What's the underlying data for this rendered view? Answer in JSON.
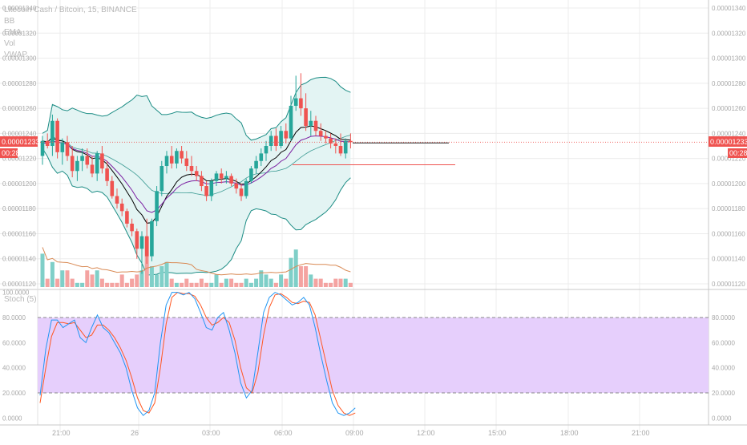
{
  "header": {
    "symbol": "Litecoin Cash / Bitcoin, 15, BINANCE",
    "indicators": [
      "BB",
      "EMA",
      "Vol",
      "VWAP"
    ]
  },
  "price_axis": {
    "labels": [
      "0.00001340",
      "0.00001320",
      "0.00001300",
      "0.00001280",
      "0.00001260",
      "0.00001240",
      "0.00001220",
      "0.00001200",
      "0.00001180",
      "0.00001160",
      "0.00001140",
      "0.00001120"
    ],
    "current_price": "0.00001233",
    "countdown": "00:28"
  },
  "stoch": {
    "title": "Stoch (5)",
    "labels": [
      "100.0000",
      "80.0000",
      "60.0000",
      "40.0000",
      "20.0000",
      "0.0000"
    ],
    "right_labels": [
      "80.0000",
      "60.0000",
      "40.0000",
      "20.0000",
      "0.0000"
    ],
    "band_color": "#e6cffc"
  },
  "time_axis": [
    "21:00",
    "26",
    "03:00",
    "06:00",
    "09:00",
    "12:00",
    "15:00",
    "18:00",
    "21:00"
  ],
  "colors": {
    "up": "#26a69a",
    "down": "#ef5350",
    "bb_fill": "#e3f4f3",
    "bb_line": "#1b8c84",
    "ema_fast": "#000000",
    "ema_slow": "#7b1fa2",
    "vwap": "#d98a55",
    "k_line": "#2196f3",
    "d_line": "#ff5722"
  },
  "chart_data": [
    {
      "type": "candlestick",
      "title": "Litecoin Cash / Bitcoin, 15, BINANCE",
      "x_ticks": [
        "21:00",
        "26",
        "03:00",
        "06:00",
        "09:00",
        "12:00",
        "15:00",
        "18:00",
        "21:00"
      ],
      "y_range": [
        1.12e-05,
        1.34e-05
      ],
      "y_ticks": [
        1.34e-05,
        1.32e-05,
        1.3e-05,
        1.28e-05,
        1.26e-05,
        1.24e-05,
        1.22e-05,
        1.2e-05,
        1.18e-05,
        1.16e-05,
        1.14e-05,
        1.12e-05
      ],
      "current_price": 1.233e-05,
      "ohlc": [
        [
          12.22,
          12.38,
          12.15,
          12.34
        ],
        [
          12.34,
          12.4,
          12.28,
          12.3
        ],
        [
          12.3,
          12.55,
          12.22,
          12.5
        ],
        [
          12.5,
          12.52,
          12.2,
          12.25
        ],
        [
          12.25,
          12.36,
          12.15,
          12.33
        ],
        [
          12.33,
          12.38,
          12.18,
          12.22
        ],
        [
          12.22,
          12.3,
          12.05,
          12.1
        ],
        [
          12.1,
          12.22,
          12.02,
          12.18
        ],
        [
          12.18,
          12.28,
          12.1,
          12.22
        ],
        [
          12.22,
          12.28,
          12.12,
          12.15
        ],
        [
          12.15,
          12.22,
          12.05,
          12.08
        ],
        [
          12.08,
          12.26,
          12.02,
          12.24
        ],
        [
          12.24,
          12.3,
          12.08,
          12.12
        ],
        [
          12.12,
          12.18,
          11.98,
          12.02
        ],
        [
          12.02,
          12.06,
          11.88,
          11.9
        ],
        [
          11.9,
          11.96,
          11.8,
          11.84
        ],
        [
          11.84,
          11.88,
          11.74,
          11.78
        ],
        [
          11.78,
          11.8,
          11.65,
          11.68
        ],
        [
          11.68,
          11.72,
          11.58,
          11.62
        ],
        [
          11.62,
          11.64,
          11.4,
          11.48
        ],
        [
          11.48,
          11.62,
          11.28,
          11.58
        ],
        [
          11.58,
          11.72,
          11.36,
          11.42
        ],
        [
          11.42,
          11.72,
          11.38,
          11.7
        ],
        [
          11.7,
          11.98,
          11.66,
          11.94
        ],
        [
          11.94,
          12.18,
          11.9,
          12.14
        ],
        [
          12.14,
          12.26,
          12.08,
          12.22
        ],
        [
          12.22,
          12.3,
          12.12,
          12.16
        ],
        [
          12.16,
          12.28,
          12.12,
          12.26
        ],
        [
          12.26,
          12.3,
          12.16,
          12.2
        ],
        [
          12.2,
          12.26,
          12.1,
          12.14
        ],
        [
          12.14,
          12.22,
          12.06,
          12.1
        ],
        [
          12.1,
          12.14,
          12.02,
          12.06
        ],
        [
          12.06,
          12.1,
          11.94,
          11.98
        ],
        [
          11.98,
          12.02,
          11.86,
          11.9
        ],
        [
          11.9,
          12.04,
          11.86,
          12.02
        ],
        [
          12.02,
          12.1,
          11.98,
          12.08
        ],
        [
          12.08,
          12.12,
          12.0,
          12.04
        ],
        [
          12.04,
          12.1,
          12.0,
          12.06
        ],
        [
          12.06,
          12.08,
          11.98,
          12.0
        ],
        [
          12.0,
          12.04,
          11.92,
          11.96
        ],
        [
          11.96,
          12.0,
          11.86,
          11.9
        ],
        [
          11.9,
          12.04,
          11.88,
          12.02
        ],
        [
          12.02,
          12.14,
          12.0,
          12.12
        ],
        [
          12.12,
          12.22,
          12.08,
          12.18
        ],
        [
          12.18,
          12.28,
          12.14,
          12.24
        ],
        [
          12.24,
          12.34,
          12.18,
          12.3
        ],
        [
          12.3,
          12.42,
          12.26,
          12.38
        ],
        [
          12.38,
          12.44,
          12.26,
          12.3
        ],
        [
          12.3,
          12.46,
          12.28,
          12.42
        ],
        [
          12.42,
          12.48,
          12.32,
          12.36
        ],
        [
          12.36,
          12.7,
          12.34,
          12.62
        ],
        [
          12.62,
          12.86,
          12.58,
          12.68
        ],
        [
          12.68,
          12.88,
          12.54,
          12.6
        ],
        [
          12.6,
          12.72,
          12.42,
          12.46
        ],
        [
          12.46,
          12.58,
          12.38,
          12.5
        ],
        [
          12.5,
          12.54,
          12.38,
          12.42
        ],
        [
          12.42,
          12.48,
          12.34,
          12.38
        ],
        [
          12.38,
          12.42,
          12.32,
          12.36
        ],
        [
          12.36,
          12.4,
          12.28,
          12.32
        ],
        [
          12.32,
          12.36,
          12.24,
          12.3
        ],
        [
          12.3,
          12.4,
          12.22,
          12.24
        ],
        [
          12.24,
          12.36,
          12.2,
          12.34
        ],
        [
          12.34,
          12.4,
          12.28,
          12.33
        ]
      ],
      "volume_series": {
        "values": [
          8,
          2,
          6,
          2,
          4,
          4,
          2,
          1,
          1,
          4,
          3,
          4,
          2,
          1,
          1,
          1,
          3,
          1,
          2,
          3,
          4,
          12,
          5,
          3,
          5,
          6,
          2,
          1,
          1,
          2,
          1,
          1,
          2,
          1,
          1,
          3,
          1,
          2,
          2,
          1,
          1,
          2,
          1,
          2,
          4,
          3,
          2,
          1,
          3,
          2,
          7,
          9,
          5,
          5,
          3,
          2,
          2,
          1,
          1,
          2,
          2,
          2,
          1
        ],
        "vwap_note": "orange moving average over volume"
      },
      "bollinger_bands": true,
      "moving_averages": [
        "EMA fast",
        "EMA slow",
        "VWAP"
      ]
    },
    {
      "type": "line",
      "title": "Stoch (5)",
      "y_range": [
        0,
        100
      ],
      "y_ticks": [
        100,
        80,
        60,
        40,
        20,
        0
      ],
      "band": [
        20,
        80
      ],
      "series": [
        {
          "values": [
            18,
            55,
            78,
            78,
            72,
            75,
            78,
            64,
            60,
            72,
            82,
            72,
            68,
            60,
            52,
            40,
            22,
            8,
            2,
            6,
            20,
            60,
            90,
            100,
            100,
            98,
            100,
            95,
            84,
            72,
            70,
            80,
            84,
            70,
            52,
            28,
            16,
            22,
            52,
            84,
            96,
            100,
            98,
            94,
            90,
            92,
            96,
            90,
            72,
            50,
            30,
            12,
            4,
            2,
            4,
            8
          ]
        },
        {
          "values": [
            12,
            40,
            65,
            76,
            76,
            75,
            76,
            70,
            64,
            66,
            74,
            74,
            70,
            64,
            56,
            46,
            32,
            16,
            6,
            4,
            12,
            40,
            75,
            96,
            100,
            99,
            99,
            97,
            90,
            80,
            74,
            76,
            80,
            76,
            62,
            40,
            24,
            20,
            36,
            66,
            88,
            98,
            99,
            96,
            92,
            91,
            93,
            92,
            82,
            62,
            42,
            22,
            10,
            4,
            2,
            4
          ]
        }
      ]
    }
  ]
}
